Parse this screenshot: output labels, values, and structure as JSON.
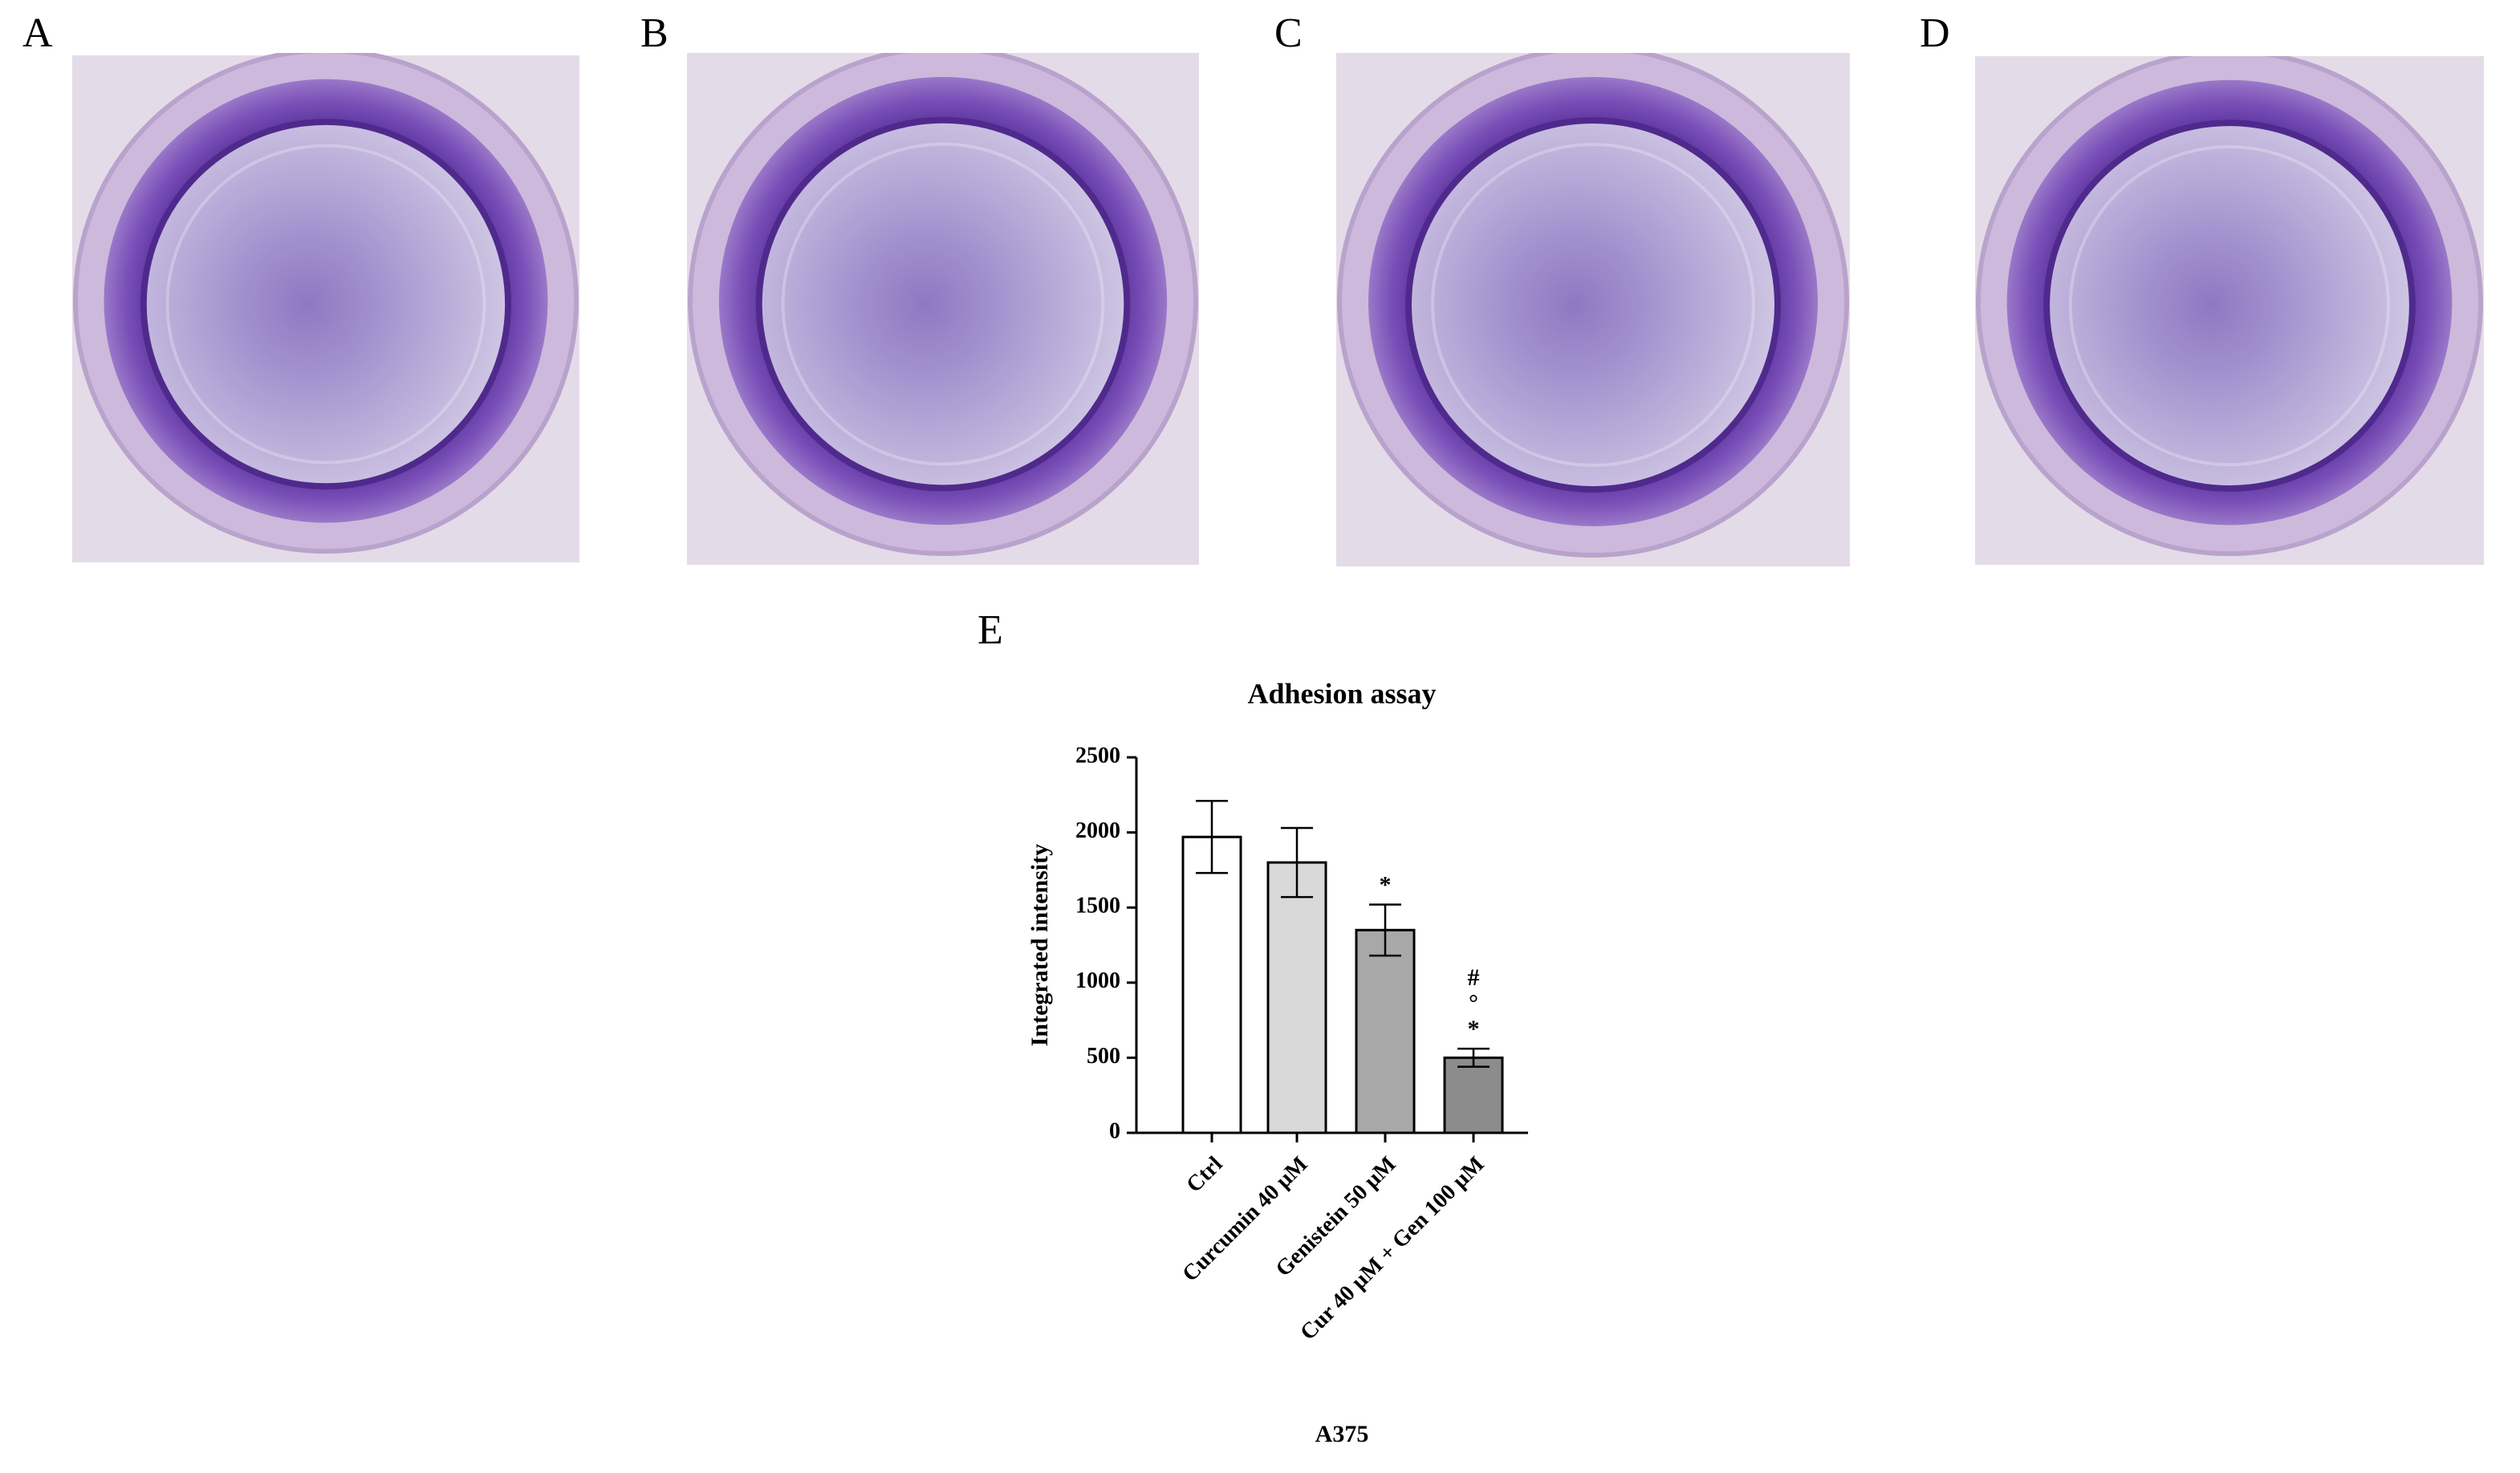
{
  "panels": [
    "A",
    "B",
    "C",
    "D"
  ],
  "chart_data": {
    "type": "bar",
    "panel_label": "E",
    "title": "Adhesion assay",
    "ylabel": "Integrated intensity",
    "xlabel": "A375",
    "categories": [
      "Ctrl",
      "Curcumin 40 μM",
      "Genistein 50 μM",
      "Cur 40 μM + Gen 100 μM"
    ],
    "values": [
      1970,
      1800,
      1350,
      500
    ],
    "errors": [
      240,
      230,
      170,
      60
    ],
    "colors": [
      "#ffffff",
      "#d9d9d9",
      "#a8a8a8",
      "#8c8c8c"
    ],
    "annotations": [
      {
        "category": "Genistein 50 μM",
        "labels": [
          "*"
        ]
      },
      {
        "category": "Cur 40 μM + Gen 100 μM",
        "labels": [
          "*",
          "°",
          "#"
        ]
      }
    ],
    "ylim": [
      0,
      2500
    ],
    "yticks": [
      0,
      500,
      1000,
      1500,
      2000,
      2500
    ]
  }
}
